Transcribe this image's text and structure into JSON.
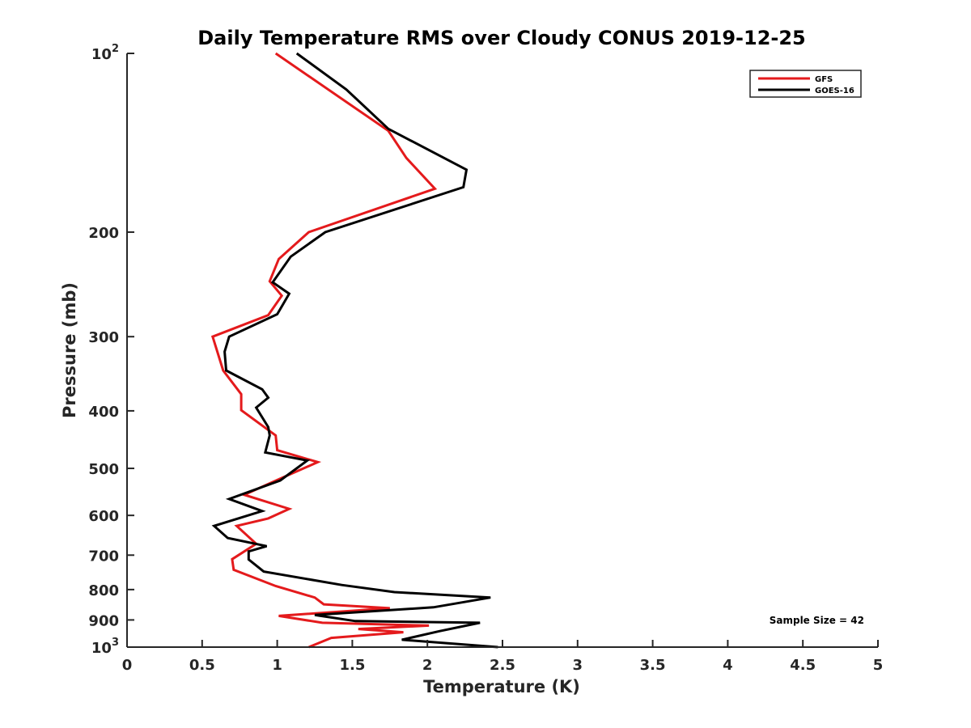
{
  "chart_data": {
    "type": "line",
    "title": "Daily Temperature RMS over Cloudy CONUS 2019-12-25",
    "xlabel": "Temperature (K)",
    "ylabel": "Pressure (mb)",
    "xlim": [
      0,
      5
    ],
    "ylim": [
      100,
      1000
    ],
    "y_scale": "log",
    "y_reversed": true,
    "grid": false,
    "legend_position": "top-right",
    "x_ticks": [
      0,
      0.5,
      1,
      1.5,
      2,
      2.5,
      3,
      3.5,
      4,
      4.5,
      5
    ],
    "x_tick_labels": [
      "0",
      "0.5",
      "1",
      "1.5",
      "2",
      "2.5",
      "3",
      "3.5",
      "4",
      "4.5",
      "5"
    ],
    "y_ticks": [
      100,
      200,
      300,
      400,
      500,
      600,
      700,
      800,
      900,
      1000
    ],
    "y_tick_labels": [
      {
        "base": "10",
        "exp": "2"
      },
      {
        "base": "200",
        "exp": ""
      },
      {
        "base": "300",
        "exp": ""
      },
      {
        "base": "400",
        "exp": ""
      },
      {
        "base": "500",
        "exp": ""
      },
      {
        "base": "600",
        "exp": ""
      },
      {
        "base": "700",
        "exp": ""
      },
      {
        "base": "800",
        "exp": ""
      },
      {
        "base": "900",
        "exp": ""
      },
      {
        "base": "10",
        "exp": "3"
      }
    ],
    "annotation": "Sample Size = 42",
    "series": [
      {
        "name": "GFS",
        "color": "#e41a1c",
        "points": [
          [
            0.99,
            100
          ],
          [
            1.74,
            135
          ],
          [
            1.86,
            150
          ],
          [
            2.05,
            169
          ],
          [
            1.21,
            200
          ],
          [
            1.01,
            222
          ],
          [
            0.95,
            242
          ],
          [
            1.03,
            256
          ],
          [
            0.94,
            276
          ],
          [
            0.57,
            300
          ],
          [
            0.64,
            342
          ],
          [
            0.76,
            375
          ],
          [
            0.76,
            399
          ],
          [
            0.99,
            440
          ],
          [
            1.0,
            466
          ],
          [
            1.27,
            488
          ],
          [
            1.03,
            519
          ],
          [
            0.78,
            554
          ],
          [
            1.08,
            585
          ],
          [
            0.94,
            607
          ],
          [
            0.73,
            625
          ],
          [
            0.86,
            670
          ],
          [
            0.7,
            711
          ],
          [
            0.71,
            741
          ],
          [
            0.99,
            789
          ],
          [
            1.25,
            825
          ],
          [
            1.31,
            847
          ],
          [
            1.75,
            860
          ],
          [
            1.01,
            886
          ],
          [
            1.3,
            910
          ],
          [
            2.01,
            920
          ],
          [
            1.54,
            932
          ],
          [
            1.84,
            944
          ],
          [
            1.36,
            965
          ],
          [
            1.21,
            1000
          ]
        ]
      },
      {
        "name": "GOES-16",
        "color": "#000000",
        "points": [
          [
            1.13,
            100
          ],
          [
            1.46,
            115
          ],
          [
            1.74,
            134
          ],
          [
            2.26,
            157
          ],
          [
            2.24,
            168
          ],
          [
            1.32,
            200
          ],
          [
            1.09,
            220
          ],
          [
            0.97,
            243
          ],
          [
            1.08,
            254
          ],
          [
            1.0,
            275
          ],
          [
            0.68,
            300
          ],
          [
            0.65,
            318
          ],
          [
            0.66,
            342
          ],
          [
            0.9,
            368
          ],
          [
            0.94,
            380
          ],
          [
            0.86,
            395
          ],
          [
            0.94,
            426
          ],
          [
            0.95,
            440
          ],
          [
            0.92,
            470
          ],
          [
            1.2,
            485
          ],
          [
            1.02,
            524
          ],
          [
            0.68,
            563
          ],
          [
            0.9,
            590
          ],
          [
            0.58,
            625
          ],
          [
            0.67,
            655
          ],
          [
            0.93,
            676
          ],
          [
            0.81,
            690
          ],
          [
            0.81,
            712
          ],
          [
            0.91,
            746
          ],
          [
            1.43,
            786
          ],
          [
            1.78,
            808
          ],
          [
            2.42,
            825
          ],
          [
            2.04,
            857
          ],
          [
            1.25,
            883
          ],
          [
            1.52,
            904
          ],
          [
            2.35,
            910
          ],
          [
            2.08,
            940
          ],
          [
            1.83,
            972
          ],
          [
            2.47,
            1000
          ]
        ]
      }
    ]
  }
}
